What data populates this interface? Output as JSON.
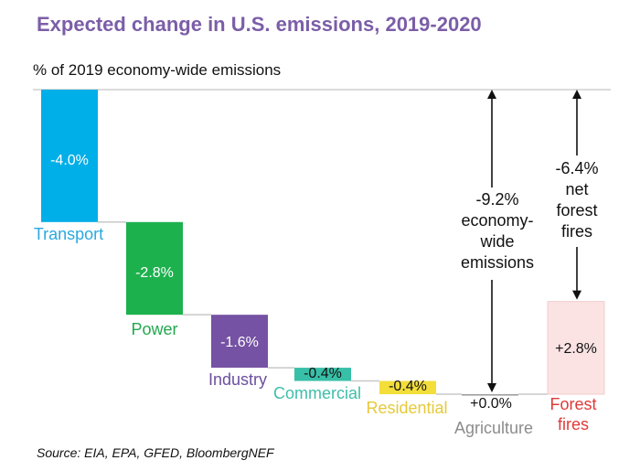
{
  "chart_data": {
    "type": "bar",
    "subtype": "waterfall",
    "title": "Expected change in U.S. emissions, 2019-2020",
    "ylabel": "% of 2019 economy-wide emissions",
    "xlabel": "",
    "source": "Source: EIA, EPA, GFED, BloombergNEF",
    "baseline": 0,
    "ylim": [
      -9.2,
      0
    ],
    "grid": false,
    "categories": [
      "Transport",
      "Power",
      "Industry",
      "Commercial",
      "Residential",
      "Agriculture",
      "Forest fires"
    ],
    "values": [
      -4.0,
      -2.8,
      -1.6,
      -0.4,
      -0.4,
      0.0,
      2.8
    ],
    "value_labels": [
      "-4.0%",
      "-2.8%",
      "-1.6%",
      "-0.4%",
      "-0.4%",
      "+0.0%",
      "+2.8%"
    ],
    "colors": [
      "#00aee8",
      "#1db14e",
      "#7552a3",
      "#38bfa7",
      "#f3de3a",
      "#9a9a9a",
      "#fbe3e3"
    ],
    "label_colors": [
      "#2aa9e0",
      "#22a84f",
      "#6c4f9e",
      "#3fbea8",
      "#e6c93a",
      "#8c8c8c",
      "#e03a3a"
    ],
    "annotations": [
      {
        "text_lines": [
          "-9.2%",
          "economy-",
          "wide",
          "emissions"
        ],
        "from": 0,
        "to": -9.2
      },
      {
        "text_lines": [
          "-6.4%",
          "net",
          "forest",
          "fires"
        ],
        "from": 0,
        "to": -6.4
      }
    ]
  }
}
